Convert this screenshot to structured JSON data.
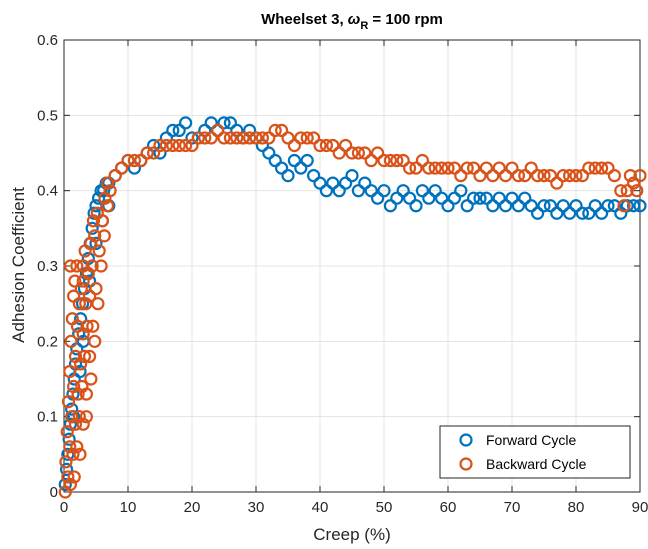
{
  "chart_data": {
    "type": "scatter",
    "title": {
      "main": "Wheelset 3, ",
      "symbol": "ω",
      "subscript": "R",
      "rest": " = 100 rpm"
    },
    "xlabel": "Creep (%)",
    "ylabel": "Adhesion Coefficient",
    "xlim": [
      0,
      90
    ],
    "ylim": [
      0,
      0.6
    ],
    "xticks": [
      0,
      10,
      20,
      30,
      40,
      50,
      60,
      70,
      80,
      90
    ],
    "yticks": [
      0,
      0.1,
      0.2,
      0.3,
      0.4,
      0.5,
      0.6
    ],
    "ytick_labels": [
      "0",
      "0.1",
      "0.2",
      "0.3",
      "0.4",
      "0.5",
      "0.6"
    ],
    "grid": true,
    "legend_position": "bottom-right",
    "marker": "open-circle",
    "series": [
      {
        "name": "Forward Cycle",
        "color": "#0072BD",
        "points": [
          [
            0.2,
            0.01
          ],
          [
            0.4,
            0.03
          ],
          [
            0.6,
            0.05
          ],
          [
            0.8,
            0.07
          ],
          [
            1.0,
            0.09
          ],
          [
            1.2,
            0.11
          ],
          [
            1.4,
            0.13
          ],
          [
            1.6,
            0.15
          ],
          [
            1.8,
            0.17
          ],
          [
            2.0,
            0.19
          ],
          [
            2.3,
            0.21
          ],
          [
            2.6,
            0.23
          ],
          [
            2.9,
            0.25
          ],
          [
            3.2,
            0.27
          ],
          [
            3.5,
            0.29
          ],
          [
            3.8,
            0.31
          ],
          [
            4.1,
            0.33
          ],
          [
            4.4,
            0.35
          ],
          [
            4.7,
            0.37
          ],
          [
            5.0,
            0.38
          ],
          [
            5.4,
            0.39
          ],
          [
            5.8,
            0.4
          ],
          [
            6.2,
            0.4
          ],
          [
            6.6,
            0.41
          ],
          [
            7.0,
            0.41
          ],
          [
            1.5,
            0.1
          ],
          [
            2.5,
            0.16
          ],
          [
            3.0,
            0.2
          ],
          [
            4.0,
            0.28
          ],
          [
            5.0,
            0.33
          ],
          [
            6.0,
            0.36
          ],
          [
            7.0,
            0.38
          ],
          [
            8.0,
            0.42
          ],
          [
            9.0,
            0.43
          ],
          [
            10.0,
            0.44
          ],
          [
            11.0,
            0.43
          ],
          [
            12.0,
            0.44
          ],
          [
            13.0,
            0.45
          ],
          [
            14.0,
            0.46
          ],
          [
            15.0,
            0.45
          ],
          [
            16.0,
            0.47
          ],
          [
            17.0,
            0.48
          ],
          [
            18.0,
            0.48
          ],
          [
            19.0,
            0.49
          ],
          [
            20.0,
            0.47
          ],
          [
            21.0,
            0.47
          ],
          [
            22.0,
            0.48
          ],
          [
            23.0,
            0.49
          ],
          [
            24.0,
            0.48
          ],
          [
            25.0,
            0.49
          ],
          [
            26.0,
            0.49
          ],
          [
            27.0,
            0.48
          ],
          [
            28.0,
            0.47
          ],
          [
            29.0,
            0.48
          ],
          [
            30.0,
            0.47
          ],
          [
            31.0,
            0.46
          ],
          [
            32.0,
            0.45
          ],
          [
            33.0,
            0.44
          ],
          [
            34.0,
            0.43
          ],
          [
            35.0,
            0.42
          ],
          [
            36.0,
            0.44
          ],
          [
            37.0,
            0.43
          ],
          [
            38.0,
            0.44
          ],
          [
            39.0,
            0.42
          ],
          [
            40.0,
            0.41
          ],
          [
            41.0,
            0.4
          ],
          [
            42.0,
            0.41
          ],
          [
            43.0,
            0.4
          ],
          [
            44.0,
            0.41
          ],
          [
            45.0,
            0.42
          ],
          [
            46.0,
            0.4
          ],
          [
            47.0,
            0.41
          ],
          [
            48.0,
            0.4
          ],
          [
            49.0,
            0.39
          ],
          [
            50.0,
            0.4
          ],
          [
            51.0,
            0.38
          ],
          [
            52.0,
            0.39
          ],
          [
            53.0,
            0.4
          ],
          [
            54.0,
            0.39
          ],
          [
            55.0,
            0.38
          ],
          [
            56.0,
            0.4
          ],
          [
            57.0,
            0.39
          ],
          [
            58.0,
            0.4
          ],
          [
            59.0,
            0.39
          ],
          [
            60.0,
            0.38
          ],
          [
            61.0,
            0.39
          ],
          [
            62.0,
            0.4
          ],
          [
            63.0,
            0.38
          ],
          [
            64.0,
            0.39
          ],
          [
            65.0,
            0.39
          ],
          [
            66.0,
            0.39
          ],
          [
            67.0,
            0.38
          ],
          [
            68.0,
            0.39
          ],
          [
            69.0,
            0.38
          ],
          [
            70.0,
            0.39
          ],
          [
            71.0,
            0.38
          ],
          [
            72.0,
            0.39
          ],
          [
            73.0,
            0.38
          ],
          [
            74.0,
            0.37
          ],
          [
            75.0,
            0.38
          ],
          [
            76.0,
            0.38
          ],
          [
            77.0,
            0.37
          ],
          [
            78.0,
            0.38
          ],
          [
            79.0,
            0.37
          ],
          [
            80.0,
            0.38
          ],
          [
            81.0,
            0.37
          ],
          [
            82.0,
            0.37
          ],
          [
            83.0,
            0.38
          ],
          [
            84.0,
            0.37
          ],
          [
            85.0,
            0.38
          ],
          [
            86.0,
            0.38
          ],
          [
            87.0,
            0.37
          ],
          [
            88.0,
            0.38
          ],
          [
            89.0,
            0.38
          ],
          [
            90.0,
            0.38
          ]
        ]
      },
      {
        "name": "Backward Cycle",
        "color": "#D95319",
        "points": [
          [
            0.2,
            0.0
          ],
          [
            0.3,
            0.04
          ],
          [
            0.5,
            0.08
          ],
          [
            0.7,
            0.12
          ],
          [
            0.9,
            0.16
          ],
          [
            1.1,
            0.2
          ],
          [
            1.3,
            0.23
          ],
          [
            1.5,
            0.26
          ],
          [
            1.7,
            0.28
          ],
          [
            2.0,
            0.3
          ],
          [
            0.6,
            0.02
          ],
          [
            0.9,
            0.06
          ],
          [
            1.2,
            0.1
          ],
          [
            1.5,
            0.14
          ],
          [
            1.8,
            0.18
          ],
          [
            2.1,
            0.22
          ],
          [
            2.4,
            0.25
          ],
          [
            2.7,
            0.27
          ],
          [
            3.0,
            0.3
          ],
          [
            3.3,
            0.32
          ],
          [
            1.0,
            0.01
          ],
          [
            1.4,
            0.05
          ],
          [
            1.8,
            0.09
          ],
          [
            2.2,
            0.13
          ],
          [
            2.6,
            0.17
          ],
          [
            3.0,
            0.21
          ],
          [
            3.4,
            0.25
          ],
          [
            3.8,
            0.29
          ],
          [
            4.2,
            0.33
          ],
          [
            4.6,
            0.36
          ],
          [
            1.6,
            0.02
          ],
          [
            2.0,
            0.06
          ],
          [
            2.4,
            0.1
          ],
          [
            2.8,
            0.14
          ],
          [
            3.2,
            0.18
          ],
          [
            3.6,
            0.22
          ],
          [
            4.0,
            0.26
          ],
          [
            4.4,
            0.3
          ],
          [
            4.8,
            0.34
          ],
          [
            5.2,
            0.37
          ],
          [
            2.5,
            0.05
          ],
          [
            3.0,
            0.09
          ],
          [
            3.5,
            0.13
          ],
          [
            4.0,
            0.18
          ],
          [
            4.5,
            0.22
          ],
          [
            5.0,
            0.27
          ],
          [
            5.5,
            0.32
          ],
          [
            6.0,
            0.36
          ],
          [
            6.4,
            0.39
          ],
          [
            6.8,
            0.41
          ],
          [
            3.5,
            0.1
          ],
          [
            4.2,
            0.15
          ],
          [
            4.8,
            0.2
          ],
          [
            5.3,
            0.25
          ],
          [
            5.8,
            0.3
          ],
          [
            6.3,
            0.34
          ],
          [
            6.8,
            0.38
          ],
          [
            7.2,
            0.4
          ],
          [
            1.0,
            0.3
          ],
          [
            3.0,
            0.28
          ],
          [
            8.0,
            0.42
          ],
          [
            9.0,
            0.43
          ],
          [
            10.0,
            0.44
          ],
          [
            11.0,
            0.44
          ],
          [
            12.0,
            0.44
          ],
          [
            13.0,
            0.45
          ],
          [
            14.0,
            0.45
          ],
          [
            15.0,
            0.46
          ],
          [
            16.0,
            0.46
          ],
          [
            17.0,
            0.46
          ],
          [
            18.0,
            0.46
          ],
          [
            19.0,
            0.46
          ],
          [
            20.0,
            0.46
          ],
          [
            21.0,
            0.47
          ],
          [
            22.0,
            0.47
          ],
          [
            23.0,
            0.47
          ],
          [
            24.0,
            0.48
          ],
          [
            25.0,
            0.47
          ],
          [
            26.0,
            0.47
          ],
          [
            27.0,
            0.47
          ],
          [
            28.0,
            0.47
          ],
          [
            29.0,
            0.47
          ],
          [
            30.0,
            0.47
          ],
          [
            31.0,
            0.47
          ],
          [
            32.0,
            0.47
          ],
          [
            33.0,
            0.48
          ],
          [
            34.0,
            0.48
          ],
          [
            35.0,
            0.47
          ],
          [
            36.0,
            0.46
          ],
          [
            37.0,
            0.47
          ],
          [
            38.0,
            0.47
          ],
          [
            39.0,
            0.47
          ],
          [
            40.0,
            0.46
          ],
          [
            41.0,
            0.46
          ],
          [
            42.0,
            0.46
          ],
          [
            43.0,
            0.45
          ],
          [
            44.0,
            0.46
          ],
          [
            45.0,
            0.45
          ],
          [
            46.0,
            0.45
          ],
          [
            47.0,
            0.45
          ],
          [
            48.0,
            0.44
          ],
          [
            49.0,
            0.45
          ],
          [
            50.0,
            0.44
          ],
          [
            51.0,
            0.44
          ],
          [
            52.0,
            0.44
          ],
          [
            53.0,
            0.44
          ],
          [
            54.0,
            0.43
          ],
          [
            55.0,
            0.43
          ],
          [
            56.0,
            0.44
          ],
          [
            57.0,
            0.43
          ],
          [
            58.0,
            0.43
          ],
          [
            59.0,
            0.43
          ],
          [
            60.0,
            0.43
          ],
          [
            61.0,
            0.43
          ],
          [
            62.0,
            0.42
          ],
          [
            63.0,
            0.43
          ],
          [
            64.0,
            0.43
          ],
          [
            65.0,
            0.42
          ],
          [
            66.0,
            0.43
          ],
          [
            67.0,
            0.42
          ],
          [
            68.0,
            0.43
          ],
          [
            69.0,
            0.42
          ],
          [
            70.0,
            0.43
          ],
          [
            71.0,
            0.42
          ],
          [
            72.0,
            0.42
          ],
          [
            73.0,
            0.43
          ],
          [
            74.0,
            0.42
          ],
          [
            75.0,
            0.42
          ],
          [
            76.0,
            0.42
          ],
          [
            77.0,
            0.41
          ],
          [
            78.0,
            0.42
          ],
          [
            79.0,
            0.42
          ],
          [
            80.0,
            0.42
          ],
          [
            81.0,
            0.42
          ],
          [
            82.0,
            0.43
          ],
          [
            83.0,
            0.43
          ],
          [
            84.0,
            0.43
          ],
          [
            85.0,
            0.43
          ],
          [
            86.0,
            0.42
          ],
          [
            87.0,
            0.4
          ],
          [
            87.5,
            0.38
          ],
          [
            88.0,
            0.4
          ],
          [
            88.5,
            0.42
          ],
          [
            89.0,
            0.41
          ],
          [
            89.5,
            0.4
          ],
          [
            90.0,
            0.42
          ]
        ]
      }
    ]
  }
}
